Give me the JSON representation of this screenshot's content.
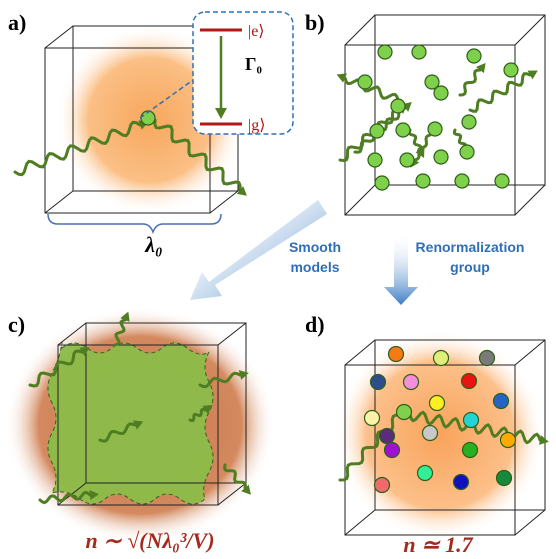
{
  "panels": {
    "a": "a)",
    "b": "b)",
    "c": "c)",
    "d": "d)"
  },
  "inset": {
    "excited": "|e⟩",
    "ground": "|g⟩",
    "rate": "Γ₀"
  },
  "wavelength": "λ₀",
  "arrows": {
    "left": "Smooth models",
    "right": "Renormalization group"
  },
  "formulas": {
    "c": "n ∼ √(Nλ₀³/V)",
    "d": "n ≃ 1.7"
  }
}
